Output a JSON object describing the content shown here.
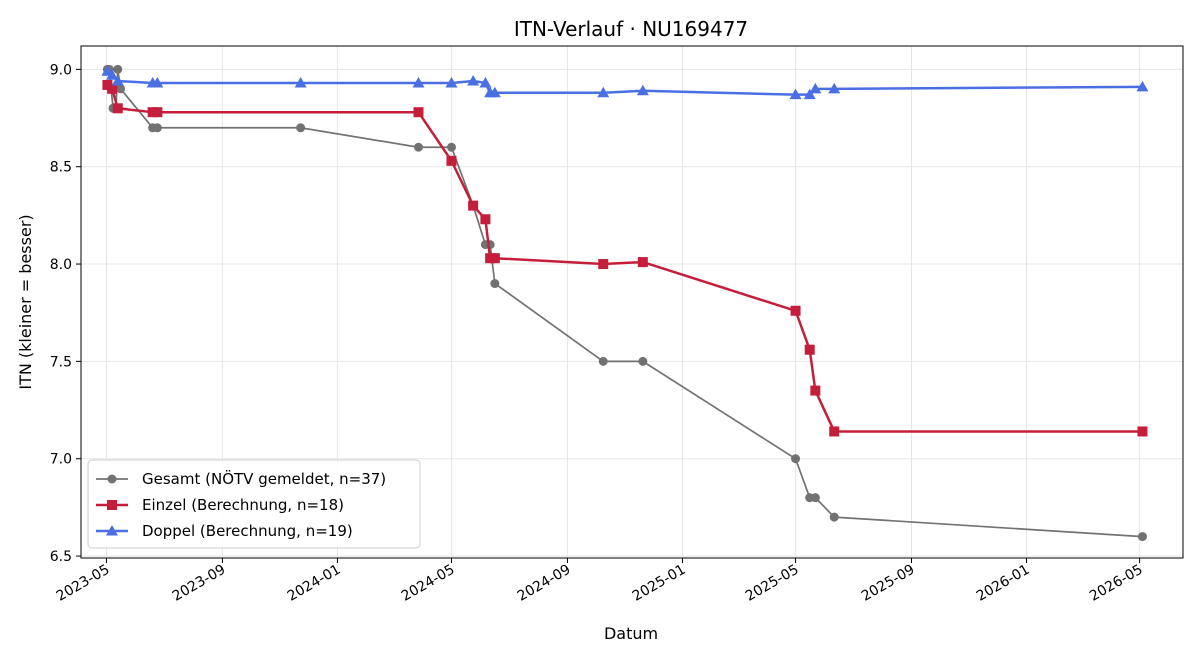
{
  "chart_data": {
    "type": "line",
    "title": "ITN-Verlauf · NU169477",
    "xlabel": "Datum",
    "ylabel": "ITN  (kleiner = besser)",
    "xlim": [
      "2023-04-04",
      "2026-06-16"
    ],
    "ylim": [
      6.49,
      9.12
    ],
    "x_ticks": [
      "2023-05",
      "2023-09",
      "2024-01",
      "2024-05",
      "2024-09",
      "2025-01",
      "2025-05",
      "2025-09",
      "2026-01",
      "2026-05"
    ],
    "x_tick_dates": [
      "2023-05-01",
      "2023-09-01",
      "2024-01-01",
      "2024-05-01",
      "2024-09-01",
      "2025-01-01",
      "2025-05-01",
      "2025-09-01",
      "2026-01-01",
      "2026-05-01"
    ],
    "y_ticks": [
      6.5,
      7.0,
      7.5,
      8.0,
      8.5,
      9.0
    ],
    "y_tick_labels": [
      "6.5",
      "7.0",
      "7.5",
      "8.0",
      "8.5",
      "9.0"
    ],
    "grid": true,
    "legend_position": "lower-left",
    "series": [
      {
        "name": "Gesamt (NÖTV gemeldet, n=37)",
        "color": "#444444",
        "marker": "circle",
        "points": [
          {
            "x": "2023-05-02",
            "y": 9.0
          },
          {
            "x": "2023-05-04",
            "y": 9.0
          },
          {
            "x": "2023-05-06",
            "y": 8.9
          },
          {
            "x": "2023-05-08",
            "y": 8.8
          },
          {
            "x": "2023-05-11",
            "y": 8.8
          },
          {
            "x": "2023-05-13",
            "y": 9.0
          },
          {
            "x": "2023-05-16",
            "y": 8.9
          },
          {
            "x": "2023-06-19",
            "y": 8.7
          },
          {
            "x": "2023-06-24",
            "y": 8.7
          },
          {
            "x": "2023-11-23",
            "y": 8.7
          },
          {
            "x": "2024-03-27",
            "y": 8.6
          },
          {
            "x": "2024-05-01",
            "y": 8.6
          },
          {
            "x": "2024-05-24",
            "y": 8.3
          },
          {
            "x": "2024-06-06",
            "y": 8.1
          },
          {
            "x": "2024-06-11",
            "y": 8.1
          },
          {
            "x": "2024-06-16",
            "y": 7.9
          },
          {
            "x": "2024-10-09",
            "y": 7.5
          },
          {
            "x": "2024-11-20",
            "y": 7.5
          },
          {
            "x": "2025-05-01",
            "y": 7.0
          },
          {
            "x": "2025-05-16",
            "y": 6.8
          },
          {
            "x": "2025-05-22",
            "y": 6.8
          },
          {
            "x": "2025-06-11",
            "y": 6.7
          },
          {
            "x": "2026-05-04",
            "y": 6.6
          }
        ]
      },
      {
        "name": "Einzel (Berechnung, n=18)",
        "color": "#C41E3A",
        "marker": "square",
        "points": [
          {
            "x": "2023-05-02",
            "y": 8.92
          },
          {
            "x": "2023-05-07",
            "y": 8.9
          },
          {
            "x": "2023-05-13",
            "y": 8.8
          },
          {
            "x": "2023-06-19",
            "y": 8.78
          },
          {
            "x": "2023-06-24",
            "y": 8.78
          },
          {
            "x": "2024-03-27",
            "y": 8.78
          },
          {
            "x": "2024-05-01",
            "y": 8.53
          },
          {
            "x": "2024-05-24",
            "y": 8.3
          },
          {
            "x": "2024-06-06",
            "y": 8.23
          },
          {
            "x": "2024-06-11",
            "y": 8.03
          },
          {
            "x": "2024-06-16",
            "y": 8.03
          },
          {
            "x": "2024-10-09",
            "y": 8.0
          },
          {
            "x": "2024-11-20",
            "y": 8.01
          },
          {
            "x": "2025-05-01",
            "y": 7.76
          },
          {
            "x": "2025-05-16",
            "y": 7.56
          },
          {
            "x": "2025-05-22",
            "y": 7.35
          },
          {
            "x": "2025-06-11",
            "y": 7.14
          },
          {
            "x": "2026-05-04",
            "y": 7.14
          }
        ]
      },
      {
        "name": "Doppel (Berechnung, n=19)",
        "color": "#4A6FE3",
        "marker": "triangle",
        "points": [
          {
            "x": "2023-05-02",
            "y": 8.99
          },
          {
            "x": "2023-05-07",
            "y": 8.97
          },
          {
            "x": "2023-05-13",
            "y": 8.94
          },
          {
            "x": "2023-06-19",
            "y": 8.93
          },
          {
            "x": "2023-06-24",
            "y": 8.93
          },
          {
            "x": "2023-11-23",
            "y": 8.93
          },
          {
            "x": "2024-03-27",
            "y": 8.93
          },
          {
            "x": "2024-05-01",
            "y": 8.93
          },
          {
            "x": "2024-05-24",
            "y": 8.94
          },
          {
            "x": "2024-06-06",
            "y": 8.93
          },
          {
            "x": "2024-06-11",
            "y": 8.88
          },
          {
            "x": "2024-06-16",
            "y": 8.88
          },
          {
            "x": "2024-10-09",
            "y": 8.88
          },
          {
            "x": "2024-11-20",
            "y": 8.89
          },
          {
            "x": "2025-05-01",
            "y": 8.87
          },
          {
            "x": "2025-05-16",
            "y": 8.87
          },
          {
            "x": "2025-05-22",
            "y": 8.9
          },
          {
            "x": "2025-06-11",
            "y": 8.9
          },
          {
            "x": "2026-05-04",
            "y": 8.91
          }
        ]
      }
    ]
  }
}
